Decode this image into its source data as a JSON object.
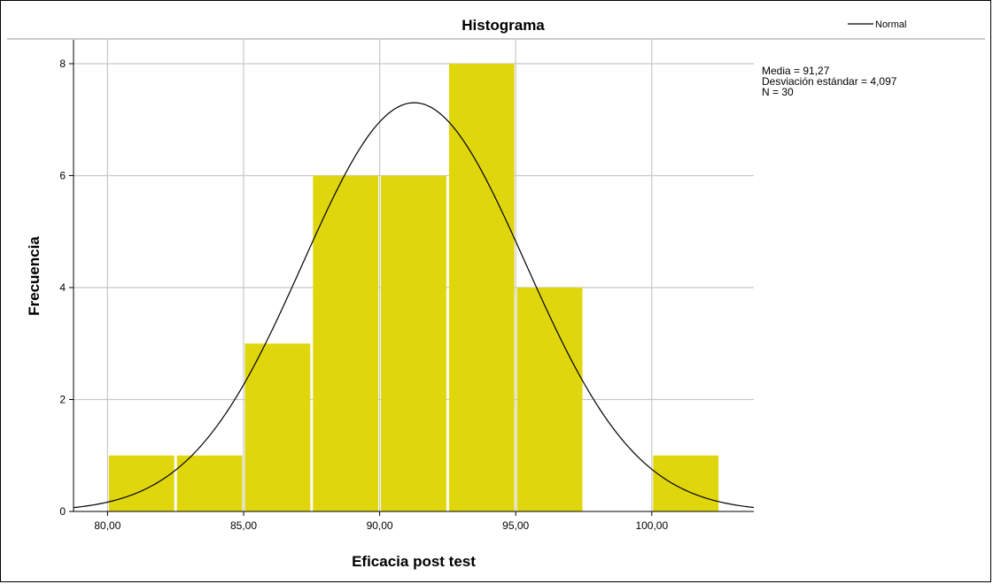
{
  "chart_data": {
    "type": "bar",
    "title": "Histograma",
    "xlabel": "Eficacia post test",
    "ylabel": "Frecuencia",
    "x_ticks": [
      "80,00",
      "85,00",
      "90,00",
      "95,00",
      "100,00"
    ],
    "x_tick_values": [
      80,
      85,
      90,
      95,
      100
    ],
    "y_ticks": [
      "0",
      "2",
      "4",
      "6",
      "8"
    ],
    "y_tick_values": [
      0,
      2,
      4,
      6,
      8
    ],
    "xlim": [
      78.75,
      103.75
    ],
    "ylim": [
      0,
      8
    ],
    "bins": [
      {
        "start": 80.0,
        "end": 82.5,
        "count": 1
      },
      {
        "start": 82.5,
        "end": 85.0,
        "count": 1
      },
      {
        "start": 85.0,
        "end": 87.5,
        "count": 3
      },
      {
        "start": 87.5,
        "end": 90.0,
        "count": 6
      },
      {
        "start": 90.0,
        "end": 92.5,
        "count": 6
      },
      {
        "start": 92.5,
        "end": 95.0,
        "count": 8
      },
      {
        "start": 95.0,
        "end": 97.5,
        "count": 4
      },
      {
        "start": 97.5,
        "end": 100.0,
        "count": 0
      },
      {
        "start": 100.0,
        "end": 102.5,
        "count": 1
      }
    ],
    "bar_color": "#e0d60d",
    "grid": true,
    "series": [
      {
        "name": "Normal",
        "type": "normal-curve",
        "mean": 91.27,
        "sd": 4.097,
        "n": 30,
        "bin_width": 2.5,
        "color": "#000000"
      }
    ],
    "legend": {
      "position": "top-right",
      "entries": [
        "Normal"
      ]
    },
    "stats": {
      "mean_label": "Media = 91,27",
      "sd_label": "Desviación estándar = 4,097",
      "n_label": "N = 30"
    }
  }
}
